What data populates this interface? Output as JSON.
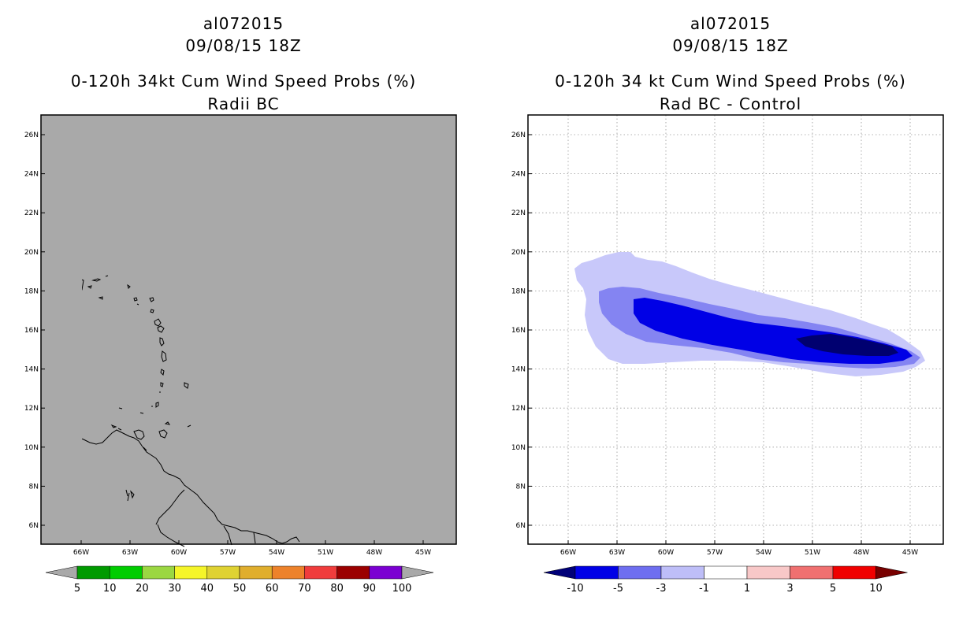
{
  "panels": [
    {
      "title": [
        "al072015",
        "09/08/15 18Z",
        "0-120h 34kt Cum Wind Speed Probs (%)",
        "Radii BC"
      ],
      "lat_labels": [
        "26N",
        "24N",
        "22N",
        "20N",
        "18N",
        "16N",
        "14N",
        "12N",
        "10N",
        "8N",
        "6N"
      ],
      "lon_labels": [
        "66W",
        "63W",
        "60W",
        "57W",
        "54W",
        "51W",
        "48W",
        "45W"
      ],
      "map_background": "#a9a9a9",
      "gridlines": false,
      "colorbar": {
        "labels": [
          "5",
          "10",
          "20",
          "30",
          "40",
          "50",
          "60",
          "70",
          "80",
          "90",
          "100"
        ],
        "colors": [
          "#009a00",
          "#00cd00",
          "#9bd742",
          "#f5f529",
          "#dfd232",
          "#e0ae2d",
          "#ed822b",
          "#f03c3c",
          "#9b0000",
          "#7b00d2"
        ],
        "under_color": "#a9a9a9",
        "over_color": "#a9a9a9"
      }
    },
    {
      "title": [
        "al072015",
        "09/08/15 18Z",
        "0-120h 34 kt Cum Wind Speed Probs (%)",
        "Rad BC - Control"
      ],
      "lat_labels": [
        "26N",
        "24N",
        "22N",
        "20N",
        "18N",
        "16N",
        "14N",
        "12N",
        "10N",
        "8N",
        "6N"
      ],
      "lon_labels": [
        "66W",
        "63W",
        "60W",
        "57W",
        "54W",
        "51W",
        "48W",
        "45W"
      ],
      "map_background": "#ffffff",
      "gridlines": true,
      "colorbar": {
        "labels": [
          "-10",
          "-5",
          "-3",
          "-1",
          "1",
          "3",
          "5",
          "10"
        ],
        "colors": [
          "#0000e6",
          "#6e6ef0",
          "#bebef8",
          "#ffffff",
          "#f8c8c8",
          "#f07070",
          "#f00000"
        ],
        "under_color": "#000078",
        "over_color": "#780000"
      },
      "field_colors": [
        "#c8c8fa",
        "#8484f2",
        "#0000e6",
        "#000070"
      ]
    }
  ]
}
